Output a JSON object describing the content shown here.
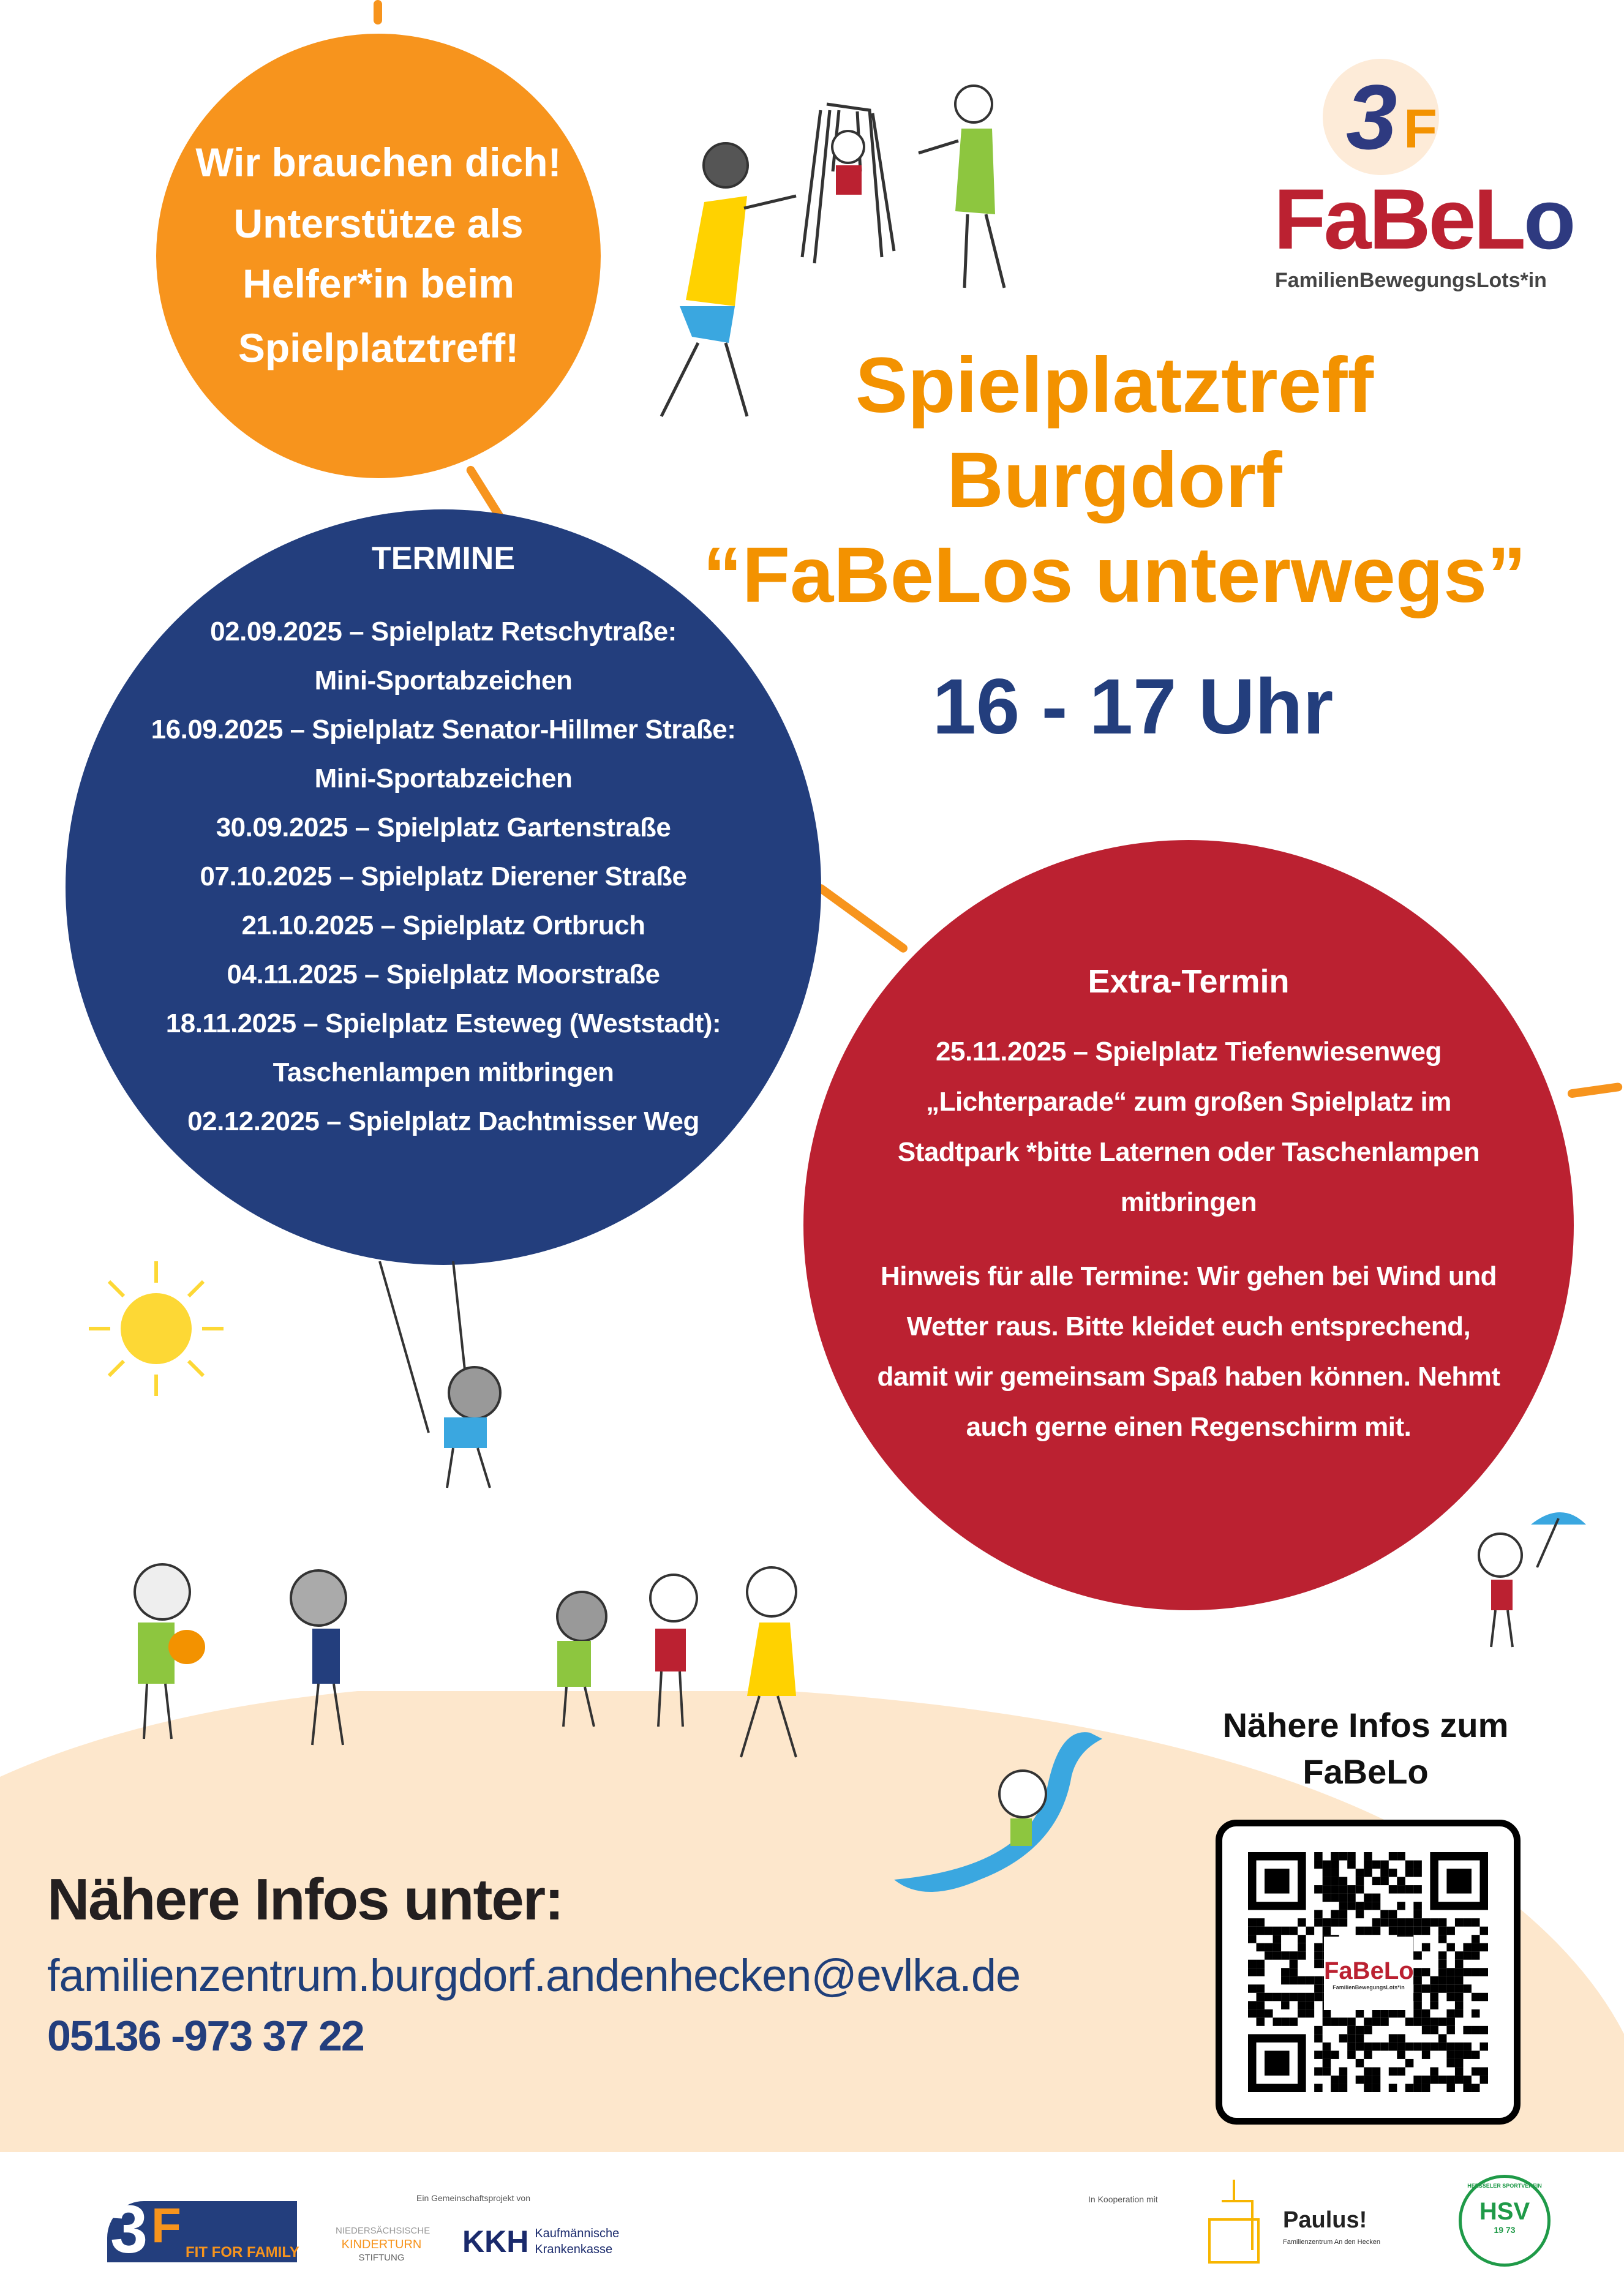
{
  "colors": {
    "orange": "#f7941d",
    "title_orange": "#f39200",
    "navy": "#233e7d",
    "red": "#bb2131",
    "beige": "#fde7cc",
    "dark": "#231f20"
  },
  "helper_circle": {
    "lines": [
      "Wir brauchen dich!",
      "Unterstütze als",
      "Helfer*in beim",
      "Spielplatztreff!"
    ]
  },
  "logo": {
    "number": "3",
    "letter": "F",
    "name_parts": [
      "Fa",
      "Be",
      "L",
      "o"
    ],
    "subtitle": "FamilienBewegungsLots*in"
  },
  "title": {
    "lines": [
      "Spielplatztreff",
      "Burgdorf",
      "“FaBeLos unterwegs”"
    ],
    "time": "16 - 17 Uhr"
  },
  "termine": {
    "heading": "TERMINE",
    "lines": [
      "02.09.2025 – Spielplatz Retschytraße:",
      "Mini-Sportabzeichen",
      "16.09.2025 – Spielplatz Senator-Hillmer Straße:",
      "Mini-Sportabzeichen",
      "30.09.2025 – Spielplatz Gartenstraße",
      "07.10.2025 – Spielplatz Dierener Straße",
      "21.10.2025 – Spielplatz Ortbruch",
      "04.11.2025 – Spielplatz Moorstraße",
      "18.11.2025 – Spielplatz Esteweg (Weststadt):",
      "Taschenlampen mitbringen",
      "02.12.2025 – Spielplatz Dachtmisser Weg"
    ]
  },
  "extra": {
    "heading": "Extra-Termin",
    "lines": [
      "25.11.2025 – Spielplatz Tiefenwiesenweg",
      "„Lichterparade“ zum großen Spielplatz im",
      "Stadtpark *bitte Laternen oder Taschenlampen",
      "mitbringen"
    ],
    "note_lines": [
      "Hinweis für alle Termine: Wir gehen bei Wind und",
      "Wetter raus. Bitte kleidet euch entsprechend,",
      "damit wir gemeinsam Spaß haben können. Nehmt",
      "auch gerne einen Regenschirm mit."
    ]
  },
  "contact": {
    "heading": "Nähere Infos unter:",
    "email": "familienzentrum.burgdorf.andenhecken@evlka.de",
    "phone": "05136 -973 37 22"
  },
  "qr": {
    "caption_lines": [
      "Nähere Infos zum",
      "FaBeLo"
    ],
    "center_logo": "FaBeLo",
    "center_sub": "FamilienBewegungsLots*in"
  },
  "footer": {
    "fit_for_family": {
      "number": "3",
      "letter": "F",
      "text": "FIT FOR FAMILY"
    },
    "joint_project_label": "Ein Gemeinschaftsprojekt von",
    "kinderturn": [
      "NIEDERSÄCHSISCHE",
      "KINDERTURN",
      "STIFTUNG"
    ],
    "kkh": {
      "abbr": "KKH",
      "lines": [
        "Kaufmännische",
        "Krankenkasse"
      ]
    },
    "cooperation_label": "In Kooperation mit",
    "paulus": {
      "name": "Paulus!",
      "sub": "Familienzentrum An den Hecken"
    },
    "hsv": {
      "ring": "HEESSELER SPORTVEREIN",
      "initials": "HSV",
      "year": "19 73"
    }
  }
}
